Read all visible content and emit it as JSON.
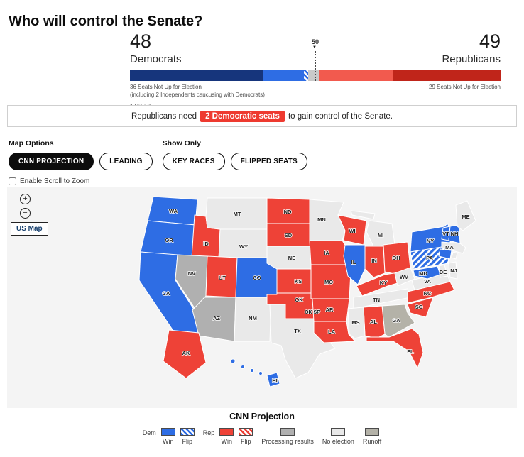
{
  "page": {
    "title": "Who will control the Senate?"
  },
  "balance_of_power": {
    "dem_count": "48",
    "dem_label": "Democrats",
    "rep_count": "49",
    "rep_label": "Republicans",
    "majority_marker": "50",
    "dem_note_line1": "36 Seats Not Up for Election",
    "dem_note_line2": "(including 2 Independents caucusing with Democrats)",
    "dem_note_line3": "1 Pickup",
    "rep_note": "29 Seats Not Up for Election",
    "segments": [
      {
        "name": "dem-seats-not-up",
        "seats": 36,
        "fill": "dem-not-up"
      },
      {
        "name": "dem-seats-won",
        "seats": 11,
        "fill": "dem-win"
      },
      {
        "name": "dem-pickup",
        "seats": 1,
        "fill": "dem-flip"
      },
      {
        "name": "seats-remaining",
        "seats": 3,
        "fill": "remaining"
      },
      {
        "name": "rep-seats-won",
        "seats": 20,
        "fill": "rep-won-bar"
      },
      {
        "name": "rep-seats-not-up",
        "seats": 29,
        "fill": "rep-not-up"
      }
    ]
  },
  "banner": {
    "prefix": "Republicans need",
    "highlight": "2 Democratic seats",
    "suffix": "to gain control of the Senate.",
    "highlight_bg": "#ee3a30"
  },
  "controls": {
    "map_options_label": "Map Options",
    "show_only_label": "Show Only",
    "map_options_buttons": [
      {
        "label": "CNN PROJECTION",
        "selected": true
      },
      {
        "label": "LEADING",
        "selected": false
      }
    ],
    "show_only_buttons": [
      {
        "label": "KEY RACES",
        "selected": false
      },
      {
        "label": "FLIPPED SEATS",
        "selected": false
      }
    ],
    "zoom_checkbox_label": "Enable Scroll to Zoom",
    "zoom_checkbox_checked": false,
    "us_map_button": "US Map"
  },
  "legend": {
    "title": "CNN Projection",
    "dem": {
      "label": "Dem",
      "win": "Win",
      "flip": "Flip"
    },
    "rep": {
      "label": "Rep",
      "win": "Win",
      "flip": "Flip"
    },
    "singles": [
      {
        "key": "processing",
        "label": "Processing results"
      },
      {
        "key": "no-election",
        "label": "No election"
      },
      {
        "key": "runoff",
        "label": "Runoff"
      }
    ],
    "colors": {
      "dem-win": "#2e6de4",
      "rep-win": "#ee4237",
      "dem-not-up": "#16357c",
      "rep-not-up": "#c0251a",
      "rep-won-bar": "#f25a4e",
      "remaining": "#c9c9c9",
      "processing": "#b0b0b0",
      "no-election": "#e9e9e9",
      "runoff": "#b4b2a8"
    }
  },
  "map": {
    "states": [
      {
        "id": "WA",
        "label": "WA",
        "status": "dem-win"
      },
      {
        "id": "OR",
        "label": "OR",
        "status": "dem-win"
      },
      {
        "id": "CA",
        "label": "CA",
        "status": "dem-win"
      },
      {
        "id": "ID",
        "label": "ID",
        "status": "rep-win"
      },
      {
        "id": "MT",
        "label": "MT",
        "status": "no-election"
      },
      {
        "id": "ND",
        "label": "ND",
        "status": "rep-win"
      },
      {
        "id": "SD",
        "label": "SD",
        "status": "rep-win"
      },
      {
        "id": "WY",
        "label": "WY",
        "status": "no-election"
      },
      {
        "id": "NV",
        "label": "NV",
        "status": "processing"
      },
      {
        "id": "UT",
        "label": "UT",
        "status": "rep-win"
      },
      {
        "id": "CO",
        "label": "CO",
        "status": "dem-win"
      },
      {
        "id": "AZ",
        "label": "AZ",
        "status": "processing"
      },
      {
        "id": "NM",
        "label": "NM",
        "status": "no-election"
      },
      {
        "id": "NE",
        "label": "NE",
        "status": "no-election"
      },
      {
        "id": "KS",
        "label": "KS",
        "status": "rep-win"
      },
      {
        "id": "OK",
        "label": "OK",
        "sublabel": "OK SP",
        "status": "rep-win"
      },
      {
        "id": "TX",
        "label": "TX",
        "status": "no-election"
      },
      {
        "id": "MN",
        "label": "MN",
        "status": "no-election"
      },
      {
        "id": "WI",
        "label": "WI",
        "status": "rep-win"
      },
      {
        "id": "IA",
        "label": "IA",
        "status": "rep-win"
      },
      {
        "id": "MO",
        "label": "MO",
        "status": "rep-win"
      },
      {
        "id": "AR",
        "label": "AR",
        "status": "rep-win"
      },
      {
        "id": "LA",
        "label": "LA",
        "status": "rep-win"
      },
      {
        "id": "IL",
        "label": "IL",
        "status": "dem-win"
      },
      {
        "id": "MI",
        "label": "MI",
        "status": "no-election"
      },
      {
        "id": "IN",
        "label": "IN",
        "status": "rep-win"
      },
      {
        "id": "OH",
        "label": "OH",
        "status": "rep-win"
      },
      {
        "id": "KY",
        "label": "KY",
        "status": "rep-win"
      },
      {
        "id": "TN",
        "label": "TN",
        "status": "no-election"
      },
      {
        "id": "WV",
        "label": "WV",
        "status": "no-election"
      },
      {
        "id": "VA",
        "label": "VA",
        "status": "no-election"
      },
      {
        "id": "NC",
        "label": "NC",
        "status": "rep-win"
      },
      {
        "id": "SC",
        "label": "SC",
        "status": "rep-win"
      },
      {
        "id": "GA",
        "label": "GA",
        "status": "runoff"
      },
      {
        "id": "AL",
        "label": "AL",
        "status": "rep-win"
      },
      {
        "id": "MS",
        "label": "MS",
        "status": "no-election"
      },
      {
        "id": "FL",
        "label": "FL",
        "status": "rep-win"
      },
      {
        "id": "PA",
        "label": "PA",
        "status": "dem-flip"
      },
      {
        "id": "NY",
        "label": "NY",
        "status": "dem-win"
      },
      {
        "id": "NJ",
        "label": "NJ",
        "status": "no-election"
      },
      {
        "id": "MD",
        "label": "MD",
        "status": "dem-win"
      },
      {
        "id": "DE",
        "label": "DE",
        "status": "no-election"
      },
      {
        "id": "VT",
        "label": "VT",
        "status": "dem-win"
      },
      {
        "id": "NH",
        "label": "NH",
        "status": "dem-win"
      },
      {
        "id": "ME",
        "label": "ME",
        "status": "no-election"
      },
      {
        "id": "MA",
        "label": "MA",
        "status": "no-election"
      },
      {
        "id": "CT",
        "label": "",
        "status": "dem-win"
      },
      {
        "id": "RI",
        "label": "",
        "status": "no-election"
      },
      {
        "id": "AK",
        "label": "AK",
        "status": "rep-win"
      },
      {
        "id": "HI",
        "label": "HI",
        "status": "dem-win"
      }
    ]
  }
}
